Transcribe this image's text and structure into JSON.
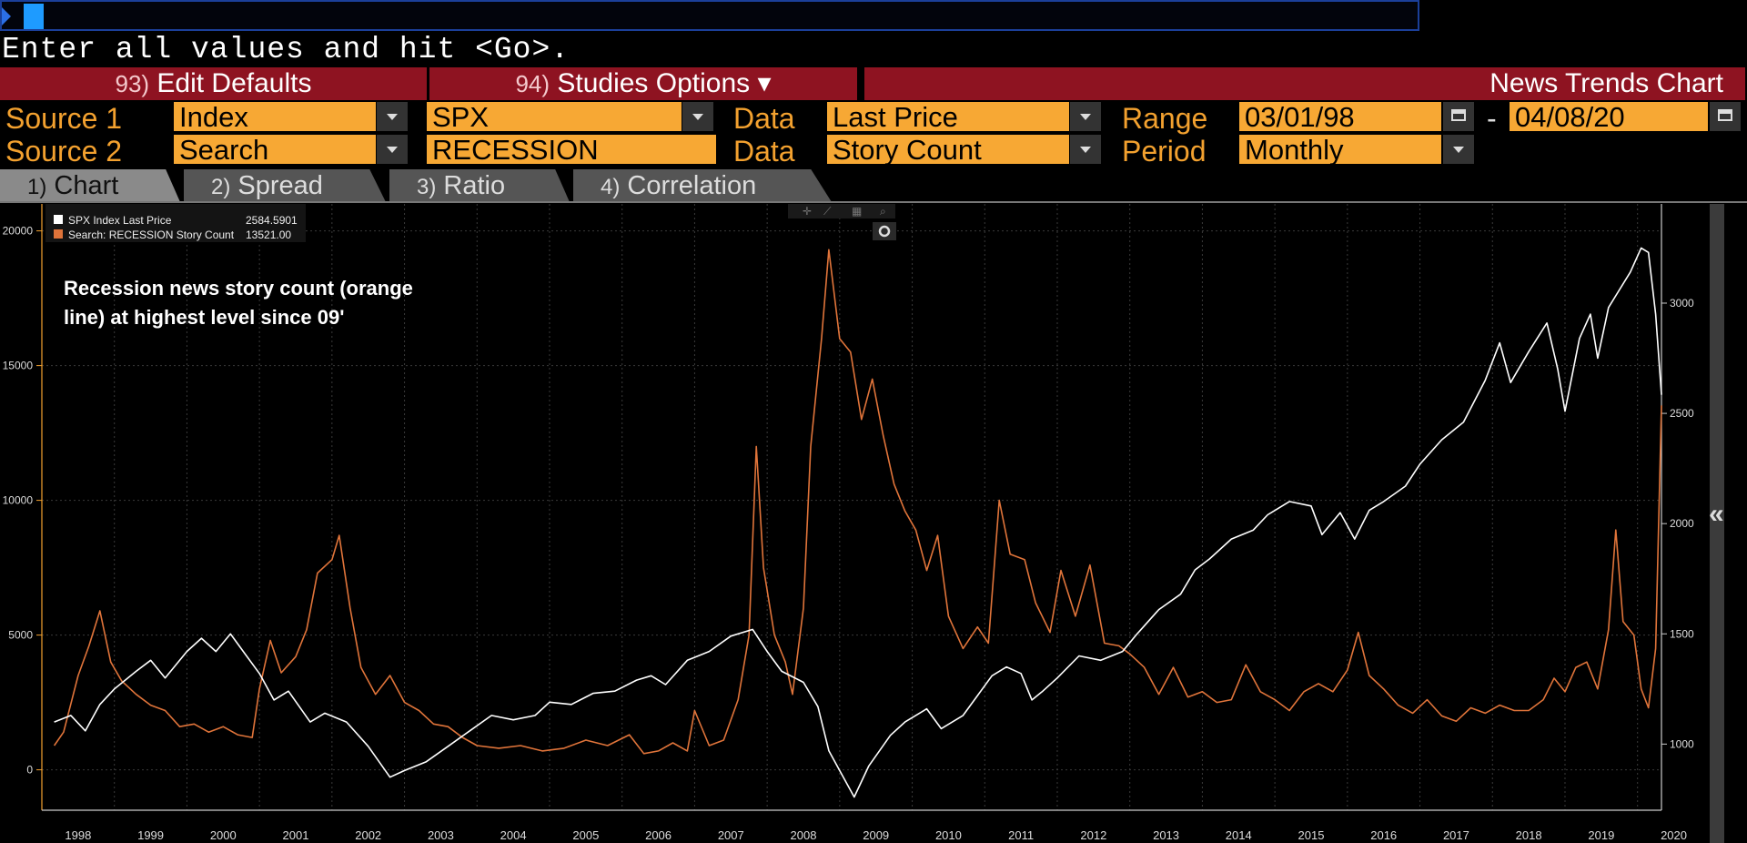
{
  "command_line": {
    "value": ""
  },
  "prompt": "Enter all values and hit <Go>.",
  "menu": {
    "edit_defaults": {
      "num": "93)",
      "label": "Edit Defaults"
    },
    "studies_options": {
      "num": "94)",
      "label": "Studies Options ▾"
    },
    "title": "News Trends Chart"
  },
  "row1": {
    "source_label": "Source 1",
    "source_type": "Index",
    "ticker": "SPX",
    "data_label": "Data",
    "data_value": "Last Price",
    "range_label": "Range",
    "start_date": "03/01/98",
    "dash": "-",
    "end_date": "04/08/20"
  },
  "row2": {
    "source_label": "Source 2",
    "source_type": "Search",
    "query": "RECESSION",
    "data_label": "Data",
    "data_value": "Story Count",
    "period_label": "Period",
    "period_value": "Monthly"
  },
  "tabs": [
    {
      "num": "1)",
      "label": "Chart",
      "active": true
    },
    {
      "num": "2)",
      "label": "Spread",
      "active": false
    },
    {
      "num": "3)",
      "label": "Ratio",
      "active": false
    },
    {
      "num": "4)",
      "label": "Correlation",
      "active": false
    }
  ],
  "colors": {
    "accent": "#f7a834",
    "menu_red": "#8e1321",
    "spx": "#ffffff",
    "recession": "#e0743a"
  },
  "sidebar": {
    "collapse_icon": "double-chevron-left-icon",
    "glyph": "«"
  },
  "chart_data": {
    "type": "line",
    "annotation": "Recession news story count (orange line) at highest level since 09'",
    "legend": [
      {
        "name": "SPX Index Last Price",
        "value": "2584.5901",
        "color": "#ffffff"
      },
      {
        "name": "Search: RECESSION Story Count",
        "value": "13521.00",
        "color": "#e0743a"
      }
    ],
    "x_range": [
      1998.0,
      2020.33
    ],
    "x_ticks": [
      "1998",
      "1999",
      "2000",
      "2001",
      "2002",
      "2003",
      "2004",
      "2005",
      "2006",
      "2007",
      "2008",
      "2009",
      "2010",
      "2011",
      "2012",
      "2013",
      "2014",
      "2015",
      "2016",
      "2017",
      "2018",
      "2019",
      "2020"
    ],
    "left_axis": {
      "min": -1500,
      "max": 21000,
      "ticks": [
        0,
        5000,
        10000,
        15000,
        20000
      ],
      "tick_labels": [
        "0",
        "5000",
        "10000",
        "15000",
        "20000"
      ]
    },
    "right_axis": {
      "min": 700,
      "max": 3450,
      "ticks": [
        1000,
        1500,
        2000,
        2500,
        3000
      ],
      "tick_labels": [
        "1000",
        "1500",
        "2000",
        "2500",
        "3000"
      ]
    },
    "series": [
      {
        "name": "SPX Index Last Price",
        "axis": "right",
        "color": "#ffffff",
        "points": [
          [
            1998.17,
            1100
          ],
          [
            1998.4,
            1130
          ],
          [
            1998.6,
            1060
          ],
          [
            1998.8,
            1180
          ],
          [
            1999.0,
            1250
          ],
          [
            1999.3,
            1330
          ],
          [
            1999.5,
            1380
          ],
          [
            1999.7,
            1300
          ],
          [
            2000.0,
            1420
          ],
          [
            2000.2,
            1480
          ],
          [
            2000.4,
            1420
          ],
          [
            2000.6,
            1500
          ],
          [
            2000.8,
            1410
          ],
          [
            2001.0,
            1320
          ],
          [
            2001.2,
            1200
          ],
          [
            2001.4,
            1240
          ],
          [
            2001.7,
            1100
          ],
          [
            2001.9,
            1140
          ],
          [
            2002.2,
            1100
          ],
          [
            2002.5,
            990
          ],
          [
            2002.8,
            850
          ],
          [
            2003.0,
            880
          ],
          [
            2003.3,
            920
          ],
          [
            2003.6,
            990
          ],
          [
            2003.9,
            1060
          ],
          [
            2004.2,
            1130
          ],
          [
            2004.5,
            1110
          ],
          [
            2004.8,
            1130
          ],
          [
            2005.0,
            1190
          ],
          [
            2005.3,
            1180
          ],
          [
            2005.6,
            1230
          ],
          [
            2005.9,
            1240
          ],
          [
            2006.2,
            1290
          ],
          [
            2006.4,
            1310
          ],
          [
            2006.6,
            1270
          ],
          [
            2006.9,
            1380
          ],
          [
            2007.2,
            1420
          ],
          [
            2007.5,
            1490
          ],
          [
            2007.8,
            1520
          ],
          [
            2008.0,
            1420
          ],
          [
            2008.2,
            1330
          ],
          [
            2008.5,
            1280
          ],
          [
            2008.7,
            1170
          ],
          [
            2008.85,
            970
          ],
          [
            2009.0,
            880
          ],
          [
            2009.2,
            760
          ],
          [
            2009.4,
            900
          ],
          [
            2009.7,
            1040
          ],
          [
            2009.9,
            1100
          ],
          [
            2010.2,
            1160
          ],
          [
            2010.4,
            1070
          ],
          [
            2010.7,
            1130
          ],
          [
            2010.9,
            1220
          ],
          [
            2011.1,
            1310
          ],
          [
            2011.3,
            1350
          ],
          [
            2011.5,
            1320
          ],
          [
            2011.65,
            1200
          ],
          [
            2011.8,
            1240
          ],
          [
            2012.0,
            1300
          ],
          [
            2012.3,
            1400
          ],
          [
            2012.6,
            1380
          ],
          [
            2012.9,
            1420
          ],
          [
            2013.1,
            1500
          ],
          [
            2013.4,
            1610
          ],
          [
            2013.7,
            1680
          ],
          [
            2013.9,
            1790
          ],
          [
            2014.1,
            1840
          ],
          [
            2014.4,
            1930
          ],
          [
            2014.7,
            1970
          ],
          [
            2014.9,
            2040
          ],
          [
            2015.2,
            2100
          ],
          [
            2015.5,
            2080
          ],
          [
            2015.65,
            1950
          ],
          [
            2015.9,
            2050
          ],
          [
            2016.1,
            1930
          ],
          [
            2016.3,
            2060
          ],
          [
            2016.5,
            2100
          ],
          [
            2016.8,
            2170
          ],
          [
            2017.0,
            2270
          ],
          [
            2017.3,
            2380
          ],
          [
            2017.6,
            2460
          ],
          [
            2017.9,
            2650
          ],
          [
            2018.1,
            2820
          ],
          [
            2018.25,
            2640
          ],
          [
            2018.5,
            2780
          ],
          [
            2018.75,
            2910
          ],
          [
            2018.9,
            2700
          ],
          [
            2019.0,
            2510
          ],
          [
            2019.2,
            2840
          ],
          [
            2019.35,
            2950
          ],
          [
            2019.45,
            2750
          ],
          [
            2019.6,
            2980
          ],
          [
            2019.9,
            3140
          ],
          [
            2020.05,
            3250
          ],
          [
            2020.15,
            3230
          ],
          [
            2020.25,
            2950
          ],
          [
            2020.33,
            2584
          ]
        ]
      },
      {
        "name": "Search: RECESSION Story Count",
        "axis": "left",
        "color": "#e0743a",
        "points": [
          [
            1998.17,
            900
          ],
          [
            1998.3,
            1400
          ],
          [
            1998.5,
            3500
          ],
          [
            1998.65,
            4600
          ],
          [
            1998.8,
            5900
          ],
          [
            1998.95,
            4000
          ],
          [
            1999.1,
            3300
          ],
          [
            1999.3,
            2800
          ],
          [
            1999.5,
            2400
          ],
          [
            1999.7,
            2200
          ],
          [
            1999.9,
            1600
          ],
          [
            2000.1,
            1700
          ],
          [
            2000.3,
            1400
          ],
          [
            2000.5,
            1600
          ],
          [
            2000.7,
            1300
          ],
          [
            2000.9,
            1200
          ],
          [
            2001.0,
            3000
          ],
          [
            2001.15,
            4800
          ],
          [
            2001.3,
            3600
          ],
          [
            2001.5,
            4200
          ],
          [
            2001.65,
            5200
          ],
          [
            2001.8,
            7300
          ],
          [
            2002.0,
            7800
          ],
          [
            2002.1,
            8700
          ],
          [
            2002.25,
            6000
          ],
          [
            2002.4,
            3800
          ],
          [
            2002.6,
            2800
          ],
          [
            2002.8,
            3500
          ],
          [
            2003.0,
            2500
          ],
          [
            2003.2,
            2200
          ],
          [
            2003.4,
            1700
          ],
          [
            2003.6,
            1600
          ],
          [
            2003.8,
            1200
          ],
          [
            2004.0,
            900
          ],
          [
            2004.3,
            800
          ],
          [
            2004.6,
            900
          ],
          [
            2004.9,
            700
          ],
          [
            2005.2,
            800
          ],
          [
            2005.5,
            1100
          ],
          [
            2005.8,
            900
          ],
          [
            2006.1,
            1300
          ],
          [
            2006.3,
            600
          ],
          [
            2006.5,
            700
          ],
          [
            2006.7,
            1000
          ],
          [
            2006.9,
            700
          ],
          [
            2007.0,
            2200
          ],
          [
            2007.2,
            900
          ],
          [
            2007.4,
            1100
          ],
          [
            2007.6,
            2600
          ],
          [
            2007.75,
            5000
          ],
          [
            2007.85,
            12000
          ],
          [
            2007.95,
            7500
          ],
          [
            2008.1,
            5000
          ],
          [
            2008.25,
            4000
          ],
          [
            2008.35,
            2800
          ],
          [
            2008.5,
            6000
          ],
          [
            2008.6,
            12000
          ],
          [
            2008.75,
            16000
          ],
          [
            2008.85,
            19300
          ],
          [
            2009.0,
            16000
          ],
          [
            2009.15,
            15500
          ],
          [
            2009.3,
            13000
          ],
          [
            2009.45,
            14500
          ],
          [
            2009.6,
            12400
          ],
          [
            2009.75,
            10600
          ],
          [
            2009.9,
            9600
          ],
          [
            2010.05,
            8900
          ],
          [
            2010.2,
            7400
          ],
          [
            2010.35,
            8700
          ],
          [
            2010.5,
            5700
          ],
          [
            2010.7,
            4500
          ],
          [
            2010.9,
            5300
          ],
          [
            2011.05,
            4700
          ],
          [
            2011.2,
            10000
          ],
          [
            2011.35,
            8000
          ],
          [
            2011.55,
            7800
          ],
          [
            2011.7,
            6200
          ],
          [
            2011.9,
            5100
          ],
          [
            2012.05,
            7400
          ],
          [
            2012.25,
            5700
          ],
          [
            2012.45,
            7600
          ],
          [
            2012.65,
            4700
          ],
          [
            2012.85,
            4600
          ],
          [
            2013.0,
            4300
          ],
          [
            2013.2,
            3800
          ],
          [
            2013.4,
            2800
          ],
          [
            2013.6,
            3800
          ],
          [
            2013.8,
            2700
          ],
          [
            2014.0,
            2900
          ],
          [
            2014.2,
            2500
          ],
          [
            2014.4,
            2600
          ],
          [
            2014.6,
            3900
          ],
          [
            2014.8,
            2900
          ],
          [
            2015.0,
            2600
          ],
          [
            2015.2,
            2200
          ],
          [
            2015.4,
            2900
          ],
          [
            2015.6,
            3200
          ],
          [
            2015.8,
            2900
          ],
          [
            2016.0,
            3700
          ],
          [
            2016.15,
            5100
          ],
          [
            2016.3,
            3500
          ],
          [
            2016.5,
            3000
          ],
          [
            2016.7,
            2400
          ],
          [
            2016.9,
            2100
          ],
          [
            2017.1,
            2600
          ],
          [
            2017.3,
            2000
          ],
          [
            2017.5,
            1800
          ],
          [
            2017.7,
            2300
          ],
          [
            2017.9,
            2100
          ],
          [
            2018.1,
            2400
          ],
          [
            2018.3,
            2200
          ],
          [
            2018.5,
            2200
          ],
          [
            2018.7,
            2600
          ],
          [
            2018.85,
            3400
          ],
          [
            2019.0,
            2900
          ],
          [
            2019.15,
            3800
          ],
          [
            2019.3,
            4000
          ],
          [
            2019.45,
            3000
          ],
          [
            2019.6,
            5200
          ],
          [
            2019.7,
            8900
          ],
          [
            2019.8,
            5500
          ],
          [
            2019.95,
            5000
          ],
          [
            2020.05,
            3000
          ],
          [
            2020.15,
            2300
          ],
          [
            2020.25,
            4500
          ],
          [
            2020.33,
            13521
          ]
        ]
      }
    ]
  }
}
